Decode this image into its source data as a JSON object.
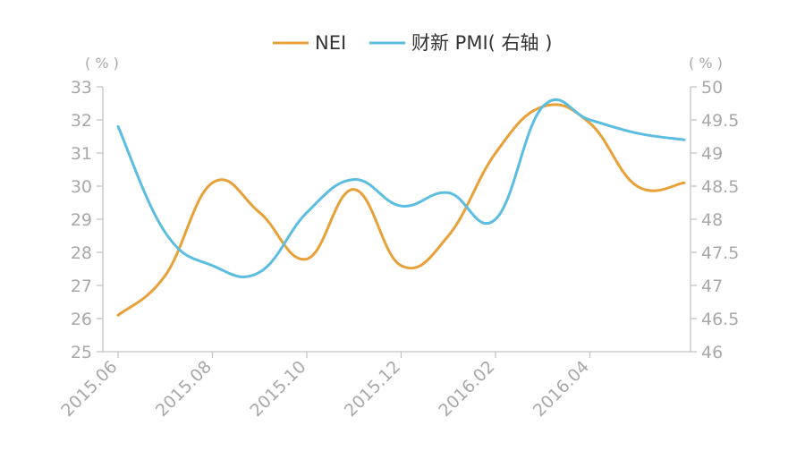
{
  "chart_data": {
    "type": "line",
    "title": "",
    "xlabel": "",
    "ylabel": "",
    "left_unit": "( % )",
    "right_unit": "( % )",
    "ylim_left": [
      25,
      33
    ],
    "ylim_right": [
      46,
      50
    ],
    "y_ticks_left": [
      "25",
      "26",
      "27",
      "28",
      "29",
      "30",
      "31",
      "32",
      "33"
    ],
    "y_ticks_right": [
      "46",
      "46.5",
      "47",
      "47.5",
      "48",
      "48.5",
      "49",
      "49.5",
      "50"
    ],
    "x_tick_labels": [
      "2015.06",
      "2015.08",
      "2015.10",
      "2015.12",
      "2016.02",
      "2016.04"
    ],
    "x_months": [
      "2015.06",
      "2015.07",
      "2015.08",
      "2015.09",
      "2015.10",
      "2015.11",
      "2015.12",
      "2016.01",
      "2016.02",
      "2016.03",
      "2016.04",
      "2016.05",
      "2016.06"
    ],
    "legend_position": "top-center",
    "series": [
      {
        "name": "NEI",
        "axis": "left",
        "color": "#e8a038",
        "points": [
          [
            "2015.06",
            26.1
          ],
          [
            "2015.07",
            27.3
          ],
          [
            "2015.08",
            30.1
          ],
          [
            "2015.09",
            29.2
          ],
          [
            "2015.10",
            27.8
          ],
          [
            "2015.11",
            29.9
          ],
          [
            "2015.12",
            27.6
          ],
          [
            "2016.01",
            28.5
          ],
          [
            "2016.02",
            31.0
          ],
          [
            "2016.03",
            32.4
          ],
          [
            "2016.04",
            31.9
          ],
          [
            "2016.05",
            30.0
          ],
          [
            "2016.06",
            30.1
          ]
        ]
      },
      {
        "name": "财新 PMI( 右轴 )",
        "axis": "right",
        "color": "#5bbde0",
        "points": [
          [
            "2015.06",
            49.4
          ],
          [
            "2015.07",
            47.8
          ],
          [
            "2015.08",
            47.3
          ],
          [
            "2015.09",
            47.2
          ],
          [
            "2015.10",
            48.1
          ],
          [
            "2015.11",
            48.6
          ],
          [
            "2015.12",
            48.2
          ],
          [
            "2016.01",
            48.4
          ],
          [
            "2016.02",
            48.0
          ],
          [
            "2016.03",
            49.7
          ],
          [
            "2016.04",
            49.5
          ],
          [
            "2016.05",
            49.3
          ],
          [
            "2016.06",
            49.2
          ]
        ]
      }
    ]
  }
}
